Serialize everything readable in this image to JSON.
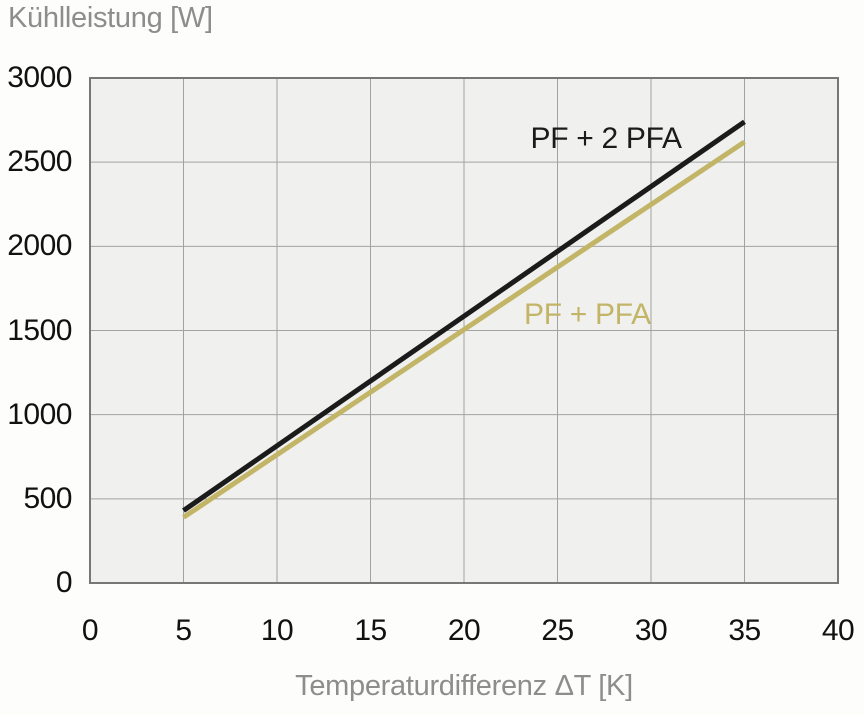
{
  "labels": {
    "y_axis_title": "Kühlleistung [W]",
    "x_axis_title": "Temperaturdifferenz ΔT [K]"
  },
  "chart_data": {
    "type": "line",
    "title": "",
    "ylabel": "Kühlleistung [W]",
    "xlabel": "Temperaturdifferenz ΔT [K]",
    "xlim": [
      0,
      40
    ],
    "ylim": [
      0,
      3000
    ],
    "xticks": [
      0,
      5,
      10,
      15,
      20,
      25,
      30,
      35,
      40
    ],
    "yticks": [
      0,
      500,
      1000,
      1500,
      2000,
      2500,
      3000
    ],
    "grid": true,
    "legend_position": "inline-labels",
    "colors": {
      "plot_background": "#f0f0ee",
      "gridline": "#a2a2a2",
      "plot_border": "#777777",
      "tick_text": "#111111",
      "axis_title_text": "#8d8d8d"
    },
    "series": [
      {
        "name": "PF + 2 PFA",
        "color": "#1b1b1b",
        "x": [
          5,
          35
        ],
        "y": [
          430,
          2740
        ],
        "label": {
          "text": "PF + 2 PFA",
          "x": 27.6,
          "y": 2635
        }
      },
      {
        "name": "PF + PFA",
        "color": "#c3b568",
        "x": [
          5,
          35
        ],
        "y": [
          390,
          2620
        ],
        "label": {
          "text": "PF + PFA",
          "x": 26.6,
          "y": 1595
        }
      }
    ]
  }
}
